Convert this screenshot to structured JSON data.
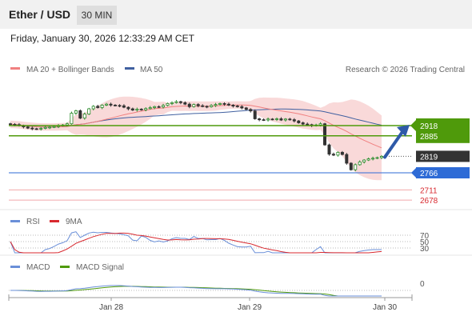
{
  "header": {
    "title": "Ether / USD",
    "interval": "30 MIN"
  },
  "datetime": "Friday, January 30, 2026 12:33:29 AM CET",
  "legend": {
    "bb_label": "MA 20 + Bollinger Bands",
    "ma50_label": "MA 50",
    "credit": "Research © 2026 Trading Central"
  },
  "colors": {
    "ma20": "#f08080",
    "ma50": "#4060a0",
    "bands": "#f8d0d0",
    "up": "#2a8a2a",
    "down": "#333333",
    "resistance": "#4f9a0b",
    "support": "#2e6bd6",
    "level": "#d8292f",
    "current": "#333333",
    "rsi": "#6a8fd8",
    "rsi9": "#d8292f",
    "macd": "#6a8fd8",
    "signal": "#4f9a0b",
    "arrow": "#2e5aa8"
  },
  "chart_data": {
    "type": "candlestick",
    "price_ylim": [
      2660,
      3010
    ],
    "x_ticks": [
      "Jan 28",
      "Jan 29",
      "Jan 30"
    ],
    "price_levels": {
      "resistance": [
        "2918",
        "2885"
      ],
      "current": "2819",
      "support": "2766",
      "targets": [
        "2711",
        "2678"
      ]
    },
    "closes": [
      2922,
      2921,
      2918,
      2914,
      2910,
      2908,
      2907,
      2909,
      2912,
      2913,
      2915,
      2918,
      2920,
      2924,
      2958,
      2966,
      2942,
      2955,
      2972,
      2980,
      2976,
      2984,
      2987,
      2984,
      2983,
      2982,
      2977,
      2972,
      2968,
      2971,
      2969,
      2973,
      2976,
      2979,
      2978,
      2983,
      2989,
      2992,
      2995,
      2992,
      2987,
      2979,
      2986,
      2982,
      2980,
      2979,
      2983,
      2986,
      2989,
      2987,
      2984,
      2981,
      2979,
      2975,
      2970,
      2965,
      2940,
      2937,
      2936,
      2939,
      2938,
      2940,
      2936,
      2939,
      2937,
      2933,
      2927,
      2923,
      2921,
      2918,
      2920,
      2924,
      2856,
      2826,
      2823,
      2832,
      2825,
      2797,
      2776,
      2792,
      2801,
      2807,
      2811,
      2813,
      2815,
      2819
    ],
    "rsi": {
      "label": "RSI",
      "signal_label": "9MA",
      "levels": [
        "70",
        "50",
        "30"
      ]
    },
    "macd": {
      "label": "MACD",
      "signal_label": "MACD Signal",
      "zero_label": "0"
    }
  }
}
